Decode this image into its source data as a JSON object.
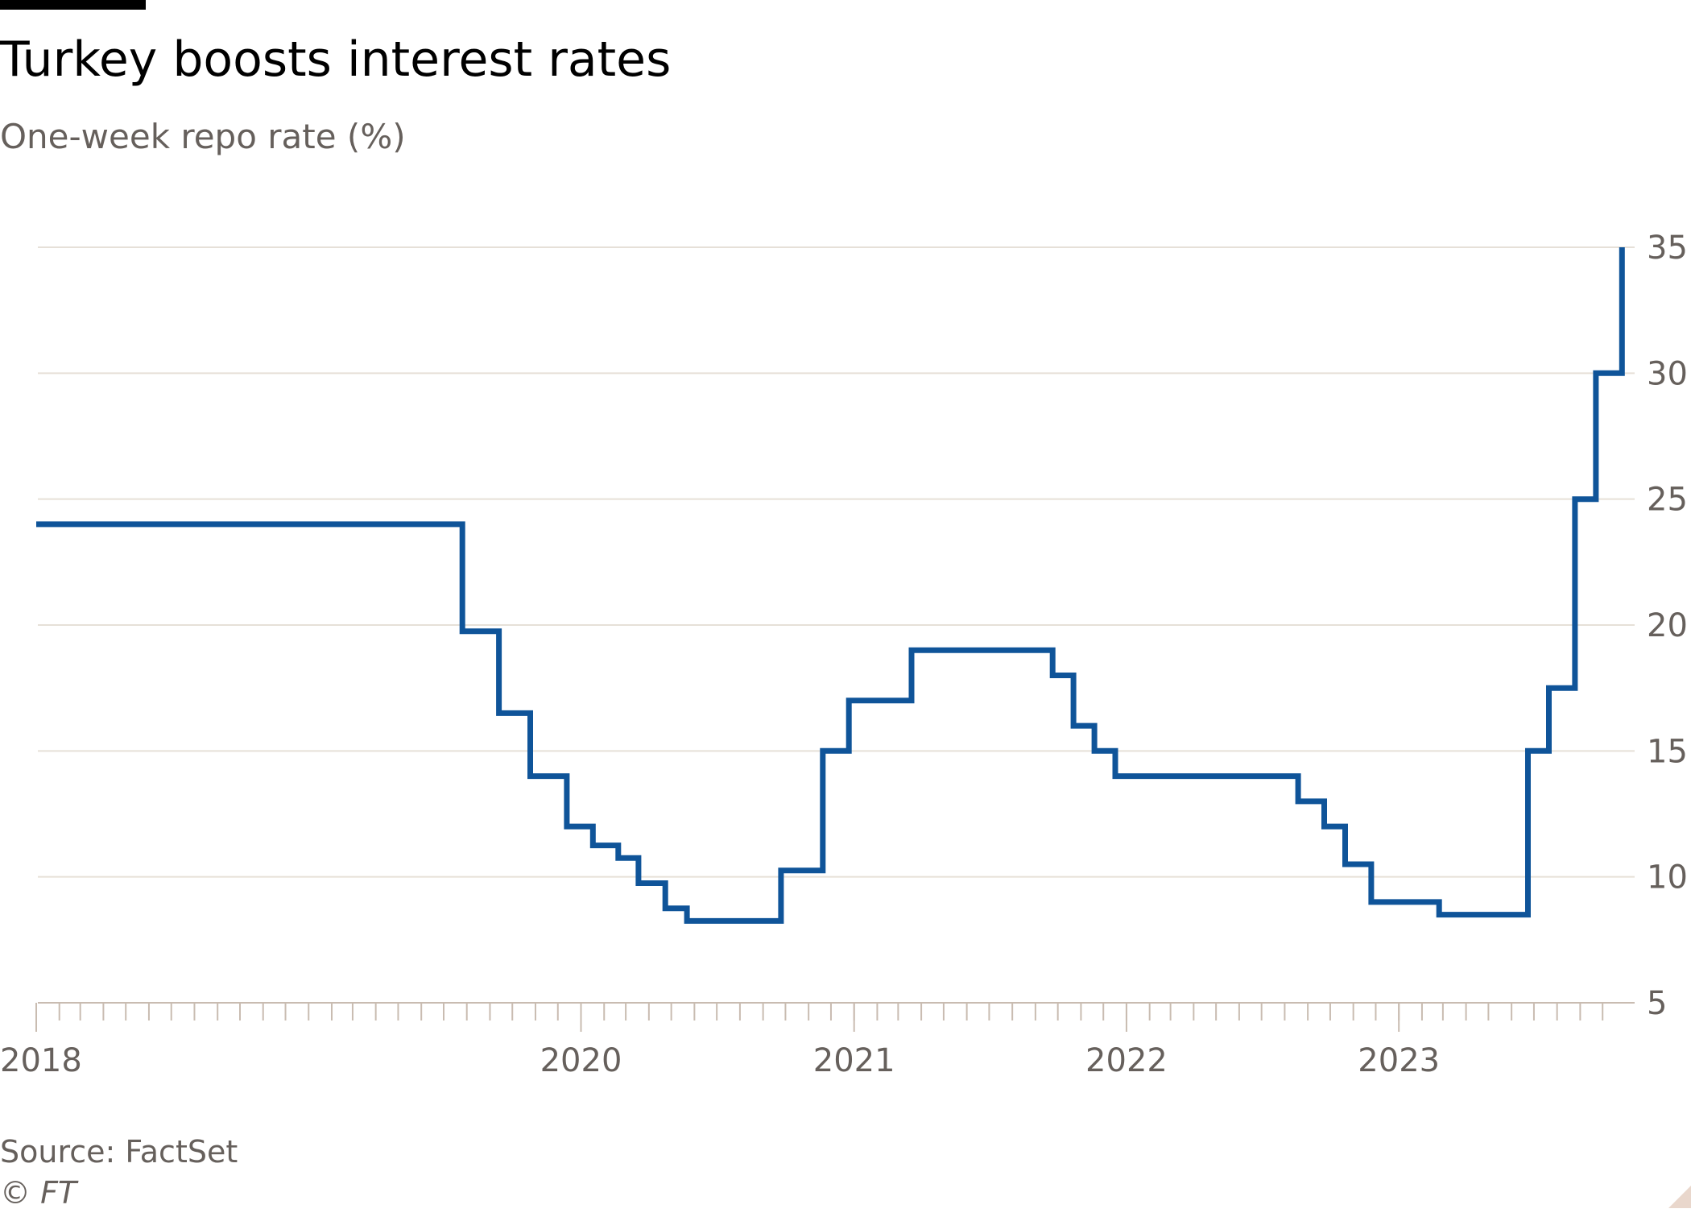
{
  "title": "Turkey boosts interest rates",
  "subtitle": "One-week repo rate (%)",
  "source": "Source: FactSet",
  "copyright": "© FT",
  "colors": {
    "line": "#0f5499",
    "grid": "#e6e0d8",
    "axis": "#c9bcb1",
    "text": "#66605c"
  },
  "chart_data": {
    "type": "line",
    "step": true,
    "title": "Turkey boosts interest rates",
    "subtitle": "One-week repo rate (%)",
    "xlabel": "",
    "ylabel": "",
    "y_axis_side": "right",
    "ylim": [
      5,
      35
    ],
    "yticks": [
      5,
      10,
      15,
      20,
      25,
      30,
      35
    ],
    "xlim": [
      "2018-01-01",
      "2023-10-31"
    ],
    "x_tick_labels": [
      "2018",
      "2020",
      "2021",
      "2022",
      "2023"
    ],
    "grid": "horizontal",
    "series": [
      {
        "x": [
          "2018-01-01",
          "2019-07-26",
          "2019-09-13",
          "2019-10-25",
          "2019-12-13",
          "2020-01-17",
          "2020-02-20",
          "2020-03-18",
          "2020-04-23",
          "2020-05-22",
          "2020-09-25",
          "2020-11-20",
          "2020-12-25",
          "2021-03-19",
          "2021-09-24",
          "2021-10-22",
          "2021-11-19",
          "2021-12-17",
          "2022-08-19",
          "2022-09-23",
          "2022-10-21",
          "2022-11-25",
          "2023-02-24",
          "2023-06-23",
          "2023-07-21",
          "2023-08-25",
          "2023-09-22",
          "2023-10-27"
        ],
        "y": [
          24,
          19.75,
          16.5,
          14,
          12,
          11.25,
          10.75,
          9.75,
          8.75,
          8.25,
          10.25,
          15,
          17,
          19,
          18,
          16,
          15,
          14,
          13,
          12,
          10.5,
          9,
          8.5,
          15,
          17.5,
          25,
          30,
          35
        ]
      }
    ]
  }
}
